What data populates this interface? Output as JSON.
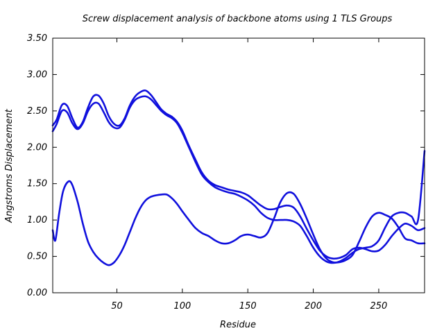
{
  "chart_data": {
    "type": "line",
    "title": "Screw displacement analysis of backbone atoms using 1 TLS Groups",
    "xlabel": "Residue",
    "ylabel": "Angstroms Displacement",
    "xlim": [
      1,
      285
    ],
    "ylim": [
      0,
      3.5
    ],
    "xticks": [
      50,
      100,
      150,
      200,
      250
    ],
    "yticks": [
      0.0,
      0.5,
      1.0,
      1.5,
      2.0,
      2.5,
      3.0,
      3.5
    ],
    "ytick_labels": [
      "0.00",
      "0.50",
      "1.00",
      "1.50",
      "2.00",
      "2.50",
      "3.00",
      "3.50"
    ],
    "grid": false,
    "line_color": "#1010dd",
    "series": [
      {
        "x": [
          1,
          4,
          8,
          12,
          16,
          20,
          24,
          28,
          32,
          36,
          40,
          44,
          48,
          52,
          56,
          60,
          64,
          68,
          72,
          76,
          80,
          84,
          88,
          92,
          96,
          100,
          105,
          110,
          115,
          120,
          125,
          130,
          135,
          140,
          145,
          150,
          155,
          160,
          165,
          170,
          175,
          180,
          185,
          190,
          195,
          200,
          205,
          210,
          215,
          220,
          225,
          230,
          235,
          240,
          245,
          250,
          255,
          260,
          265,
          270,
          275,
          280,
          285
        ],
        "y": [
          2.3,
          2.38,
          2.58,
          2.57,
          2.4,
          2.27,
          2.35,
          2.55,
          2.7,
          2.71,
          2.6,
          2.42,
          2.32,
          2.3,
          2.4,
          2.58,
          2.7,
          2.76,
          2.78,
          2.72,
          2.62,
          2.52,
          2.46,
          2.42,
          2.35,
          2.23,
          2.02,
          1.83,
          1.65,
          1.54,
          1.48,
          1.45,
          1.42,
          1.4,
          1.38,
          1.34,
          1.27,
          1.2,
          1.15,
          1.15,
          1.18,
          1.2,
          1.17,
          1.05,
          0.88,
          0.72,
          0.58,
          0.5,
          0.47,
          0.48,
          0.52,
          0.6,
          0.62,
          0.6,
          0.57,
          0.58,
          0.66,
          0.78,
          0.88,
          0.95,
          0.92,
          0.86,
          0.89
        ]
      },
      {
        "x": [
          1,
          4,
          8,
          12,
          16,
          20,
          24,
          28,
          32,
          36,
          40,
          44,
          48,
          52,
          56,
          60,
          64,
          68,
          72,
          76,
          80,
          84,
          88,
          92,
          96,
          100,
          105,
          110,
          115,
          120,
          125,
          130,
          135,
          140,
          145,
          150,
          155,
          160,
          165,
          170,
          175,
          180,
          185,
          190,
          195,
          200,
          205,
          210,
          215,
          220,
          225,
          230,
          235,
          240,
          245,
          250,
          255,
          260,
          265,
          270,
          275,
          280,
          285
        ],
        "y": [
          2.22,
          2.32,
          2.5,
          2.48,
          2.33,
          2.25,
          2.33,
          2.5,
          2.6,
          2.6,
          2.48,
          2.34,
          2.27,
          2.27,
          2.38,
          2.55,
          2.65,
          2.69,
          2.7,
          2.66,
          2.58,
          2.5,
          2.44,
          2.4,
          2.33,
          2.2,
          2.0,
          1.8,
          1.62,
          1.52,
          1.45,
          1.41,
          1.38,
          1.36,
          1.32,
          1.27,
          1.2,
          1.1,
          1.03,
          1.0,
          1.0,
          1.0,
          0.98,
          0.92,
          0.78,
          0.62,
          0.5,
          0.43,
          0.41,
          0.43,
          0.48,
          0.55,
          0.6,
          0.62,
          0.64,
          0.72,
          0.9,
          1.05,
          1.1,
          1.1,
          1.05,
          1.0,
          1.95
        ]
      },
      {
        "x": [
          1,
          3,
          6,
          9,
          13,
          16,
          20,
          24,
          28,
          32,
          36,
          40,
          44,
          48,
          52,
          56,
          60,
          64,
          68,
          72,
          76,
          80,
          84,
          88,
          92,
          96,
          100,
          105,
          110,
          115,
          120,
          125,
          130,
          135,
          140,
          145,
          150,
          155,
          160,
          165,
          170,
          175,
          180,
          185,
          190,
          195,
          200,
          205,
          210,
          215,
          220,
          225,
          230,
          235,
          240,
          245,
          250,
          255,
          260,
          265,
          270,
          275,
          280,
          285
        ],
        "y": [
          0.86,
          0.72,
          1.1,
          1.4,
          1.53,
          1.48,
          1.25,
          0.95,
          0.7,
          0.56,
          0.47,
          0.41,
          0.38,
          0.42,
          0.52,
          0.66,
          0.84,
          1.02,
          1.17,
          1.27,
          1.32,
          1.34,
          1.35,
          1.35,
          1.3,
          1.22,
          1.12,
          1.0,
          0.89,
          0.82,
          0.78,
          0.72,
          0.68,
          0.68,
          0.72,
          0.78,
          0.8,
          0.78,
          0.76,
          0.82,
          1.02,
          1.25,
          1.37,
          1.36,
          1.22,
          1.02,
          0.8,
          0.6,
          0.47,
          0.42,
          0.42,
          0.45,
          0.52,
          0.7,
          0.9,
          1.05,
          1.1,
          1.07,
          1.02,
          0.9,
          0.75,
          0.72,
          0.68,
          0.68
        ]
      }
    ]
  }
}
